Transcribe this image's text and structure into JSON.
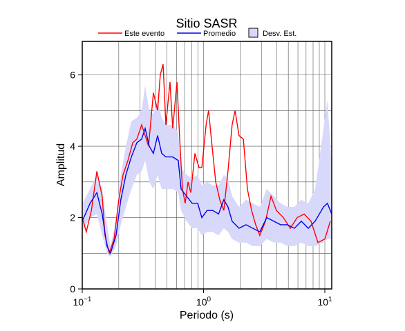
{
  "chart_data": {
    "type": "line",
    "title": "Sitio SASR",
    "x_label": "Periodo (s)",
    "y_label": "Amplitud",
    "xscale": "log",
    "xlim": [
      0.1,
      11.4
    ],
    "ylim": [
      0,
      6.94
    ],
    "xticks": [
      {
        "value": 0.1,
        "label": "10",
        "exponent": "−1"
      },
      {
        "value": 1,
        "label": "10",
        "exponent": "0"
      },
      {
        "value": 10,
        "label": "10",
        "exponent": "1"
      }
    ],
    "xminor": [
      0.2,
      0.3,
      0.4,
      0.5,
      0.6,
      0.7,
      0.8,
      0.9,
      2,
      3,
      4,
      5,
      6,
      7,
      8,
      9
    ],
    "yticks": [
      0,
      2,
      4,
      6
    ],
    "yminor": [
      1,
      3,
      5
    ],
    "grid": true,
    "legend": "top",
    "series": [
      {
        "name": "Este evento",
        "color": "#ff0000",
        "x": [
          0.1,
          0.108,
          0.119,
          0.132,
          0.146,
          0.154,
          0.167,
          0.183,
          0.2,
          0.217,
          0.238,
          0.261,
          0.282,
          0.309,
          0.33,
          0.352,
          0.386,
          0.418,
          0.44,
          0.464,
          0.489,
          0.529,
          0.557,
          0.604,
          0.636,
          0.67,
          0.706,
          0.745,
          0.785,
          0.849,
          0.918,
          0.968,
          1.05,
          1.1,
          1.16,
          1.26,
          1.36,
          1.47,
          1.59,
          1.72,
          1.82,
          1.96,
          2.13,
          2.3,
          2.49,
          2.69,
          2.91,
          3.24,
          3.6,
          3.99,
          4.55,
          5.19,
          5.92,
          6.75,
          7.69,
          8.77,
          10.0,
          11.1
        ],
        "values": [
          2.0,
          1.6,
          2.2,
          3.3,
          2.6,
          1.5,
          1.0,
          1.4,
          2.5,
          3.2,
          3.6,
          4.1,
          4.2,
          4.6,
          4.3,
          4.0,
          5.5,
          5.0,
          6.0,
          6.3,
          4.6,
          5.8,
          4.5,
          5.8,
          4.2,
          2.8,
          2.4,
          3.0,
          2.7,
          3.8,
          3.4,
          3.4,
          4.6,
          5.0,
          4.2,
          3.0,
          2.5,
          2.2,
          3.3,
          4.6,
          5.0,
          4.3,
          4.2,
          2.8,
          2.2,
          1.8,
          1.5,
          1.9,
          2.6,
          2.2,
          2.0,
          1.7,
          2.0,
          2.1,
          1.9,
          1.3,
          1.4,
          1.9
        ]
      },
      {
        "name": "Promedio",
        "color": "#0000ee",
        "x": [
          0.1,
          0.116,
          0.132,
          0.146,
          0.16,
          0.171,
          0.19,
          0.208,
          0.229,
          0.254,
          0.282,
          0.309,
          0.33,
          0.357,
          0.386,
          0.418,
          0.452,
          0.489,
          0.557,
          0.619,
          0.653,
          0.725,
          0.805,
          0.895,
          0.968,
          1.07,
          1.19,
          1.33,
          1.47,
          1.59,
          1.72,
          1.96,
          2.24,
          2.55,
          2.91,
          3.32,
          3.79,
          4.32,
          4.92,
          5.61,
          6.4,
          7.3,
          8.32,
          9.75,
          10.5,
          11.4
        ],
        "values": [
          1.9,
          2.4,
          2.7,
          2.1,
          1.2,
          1.0,
          1.5,
          2.5,
          3.2,
          3.7,
          4.1,
          4.2,
          4.5,
          4.0,
          3.8,
          4.3,
          3.8,
          3.7,
          3.7,
          3.6,
          2.8,
          2.6,
          2.4,
          2.4,
          2.0,
          2.2,
          2.2,
          2.1,
          2.5,
          2.3,
          1.9,
          1.7,
          1.8,
          1.7,
          1.6,
          2.0,
          1.9,
          1.8,
          1.8,
          1.7,
          1.9,
          1.7,
          1.9,
          2.3,
          2.4,
          2.1
        ]
      },
      {
        "name": "Desv. Est.",
        "color": "#d8d8fb",
        "band": true,
        "x": [
          0.1,
          0.116,
          0.132,
          0.146,
          0.16,
          0.171,
          0.19,
          0.208,
          0.229,
          0.254,
          0.282,
          0.309,
          0.33,
          0.357,
          0.386,
          0.418,
          0.452,
          0.489,
          0.557,
          0.619,
          0.653,
          0.725,
          0.805,
          0.895,
          0.968,
          1.07,
          1.19,
          1.33,
          1.47,
          1.59,
          1.72,
          1.96,
          2.24,
          2.55,
          2.91,
          3.32,
          3.79,
          4.32,
          4.92,
          5.61,
          6.4,
          7.3,
          8.32,
          9.75,
          10.5,
          11.4
        ],
        "lower": [
          1.6,
          2.0,
          2.1,
          1.5,
          1.0,
          0.9,
          1.2,
          1.8,
          2.3,
          2.8,
          3.2,
          3.3,
          3.6,
          3.0,
          2.8,
          3.2,
          2.8,
          2.8,
          2.8,
          2.7,
          2.2,
          1.9,
          1.7,
          1.7,
          1.5,
          1.6,
          1.6,
          1.5,
          1.7,
          1.6,
          1.4,
          1.3,
          1.3,
          1.2,
          1.2,
          1.4,
          1.3,
          1.3,
          1.2,
          1.2,
          1.3,
          1.2,
          1.2,
          1.3,
          1.4,
          1.4
        ],
        "upper": [
          2.4,
          2.8,
          3.2,
          2.8,
          1.8,
          1.2,
          1.9,
          3.2,
          4.0,
          4.7,
          4.8,
          5.0,
          5.7,
          5.0,
          4.9,
          5.3,
          4.8,
          4.6,
          4.6,
          4.4,
          3.4,
          3.2,
          3.1,
          3.2,
          2.9,
          3.0,
          2.9,
          2.9,
          3.2,
          3.1,
          2.6,
          2.3,
          2.5,
          2.4,
          2.3,
          2.8,
          2.6,
          2.4,
          2.3,
          2.3,
          2.5,
          2.4,
          2.8,
          4.5,
          5.3,
          3.5
        ]
      }
    ]
  }
}
